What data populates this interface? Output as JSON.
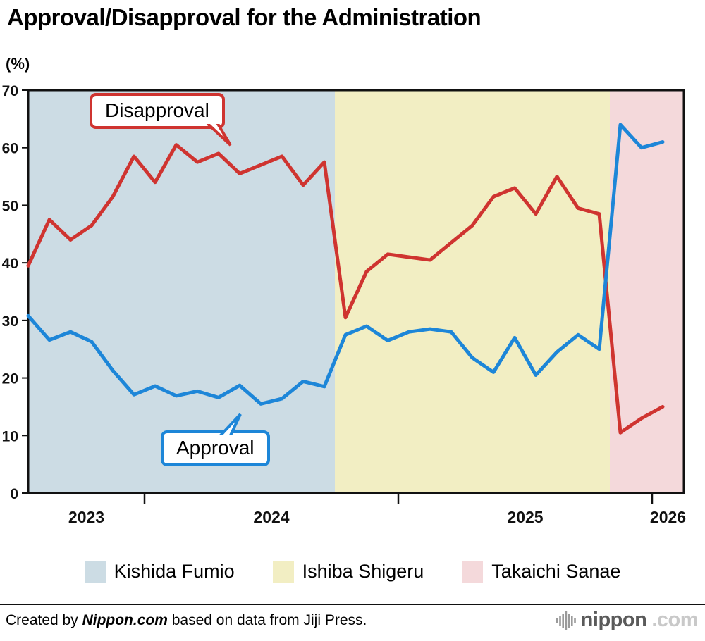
{
  "title": "Approval/Disapproval for the Administration",
  "unit_label": "(%)",
  "annotations": {
    "disapproval": "Disapproval",
    "approval": "Approval"
  },
  "chart_data": {
    "type": "line",
    "title": "Approval/Disapproval for the Administration",
    "ylabel": "(%)",
    "ylim": [
      0,
      70
    ],
    "ytick_step": 10,
    "grid": false,
    "legend_position": "bottom",
    "x": [
      "2023-07",
      "2023-08",
      "2023-09",
      "2023-10",
      "2023-11",
      "2023-12",
      "2024-01",
      "2024-02",
      "2024-03",
      "2024-04",
      "2024-05",
      "2024-06",
      "2024-07",
      "2024-08",
      "2024-09",
      "2024-10",
      "2024-11",
      "2024-12",
      "2025-01",
      "2025-02",
      "2025-03",
      "2025-04",
      "2025-05",
      "2025-06",
      "2025-07",
      "2025-08",
      "2025-09",
      "2025-10",
      "2025-11",
      "2025-12",
      "2026-01"
    ],
    "x_year_labels": [
      "2023",
      "2024",
      "2025",
      "2026"
    ],
    "series": [
      {
        "name": "Disapproval",
        "color": "#cf3430",
        "values": [
          39.5,
          47.5,
          44.0,
          46.5,
          51.5,
          58.5,
          54.0,
          60.5,
          57.5,
          59.0,
          55.5,
          57.0,
          58.5,
          53.5,
          57.5,
          30.5,
          38.5,
          41.5,
          41.0,
          40.5,
          43.5,
          46.5,
          51.5,
          53.0,
          48.5,
          55.0,
          49.5,
          48.5,
          10.5,
          13.0,
          15.0
        ]
      },
      {
        "name": "Approval",
        "color": "#1d86d8",
        "values": [
          30.8,
          26.6,
          28.0,
          26.3,
          21.3,
          17.1,
          18.6,
          16.9,
          17.7,
          16.6,
          18.7,
          15.5,
          16.4,
          19.4,
          18.5,
          27.5,
          29.0,
          26.5,
          28.0,
          28.5,
          28.0,
          23.5,
          21.0,
          27.0,
          20.5,
          24.5,
          27.5,
          25.0,
          64.0,
          60.0,
          61.0
        ]
      }
    ],
    "regions": [
      {
        "name": "Kishida Fumio",
        "color": "#ccdce4",
        "from": "2023-07",
        "to": "2024-09"
      },
      {
        "name": "Ishiba Shigeru",
        "color": "#f2eec3",
        "from": "2024-10",
        "to": "2025-10"
      },
      {
        "name": "Takaichi Sanae",
        "color": "#f4d9db",
        "from": "2025-11",
        "to": "2026-01"
      }
    ]
  },
  "footer": {
    "credit_prefix": "Created by ",
    "credit_source": "Nippon.com",
    "credit_suffix": " based on data from Jiji Press.",
    "logo_text": "nippon",
    "logo_suffix": ".com"
  }
}
